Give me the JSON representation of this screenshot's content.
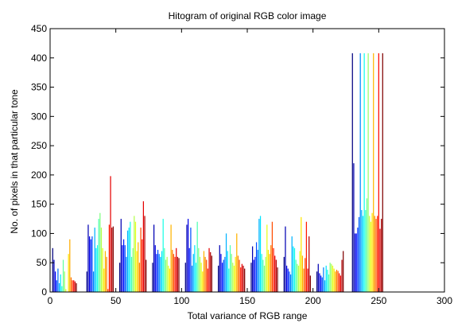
{
  "chart_data": {
    "type": "bar",
    "title": "Hitogram of original RGB color image",
    "xlabel": "Total variance of RGB range",
    "ylabel": "No. of pixels in that particular tone",
    "xlim": [
      0,
      300
    ],
    "ylim": [
      0,
      450
    ],
    "xticks": [
      0,
      50,
      100,
      150,
      200,
      250,
      300
    ],
    "yticks": [
      0,
      50,
      100,
      150,
      200,
      250,
      300,
      350,
      400,
      450
    ],
    "grid": false,
    "legend": "none",
    "colormap": "jet",
    "series": [
      {
        "x": [
          2,
          3,
          4,
          5,
          6,
          7,
          8,
          9,
          10,
          11,
          12,
          14,
          15,
          16,
          17,
          18,
          19,
          20
        ],
        "values": [
          75,
          55,
          35,
          20,
          40,
          15,
          30,
          10,
          55,
          35,
          5,
          65,
          90,
          25,
          20,
          20,
          18,
          15
        ]
      },
      {
        "x": [
          28,
          29,
          30,
          31,
          32,
          33,
          34,
          35,
          36,
          37,
          38,
          39,
          40,
          41,
          42,
          43,
          44,
          45,
          46,
          47,
          48
        ],
        "values": [
          35,
          115,
          95,
          90,
          95,
          35,
          110,
          75,
          80,
          125,
          135,
          110,
          75,
          40,
          70,
          60,
          5,
          115,
          198,
          110,
          112
        ]
      },
      {
        "x": [
          53,
          54,
          55,
          56,
          57,
          58,
          59,
          60,
          61,
          62,
          63,
          64,
          65,
          66,
          67,
          68,
          69,
          70,
          71,
          72,
          73
        ],
        "values": [
          50,
          125,
          80,
          90,
          80,
          60,
          105,
          110,
          120,
          60,
          75,
          130,
          120,
          70,
          85,
          50,
          110,
          90,
          155,
          130,
          55
        ]
      },
      {
        "x": [
          78,
          79,
          80,
          81,
          82,
          83,
          84,
          85,
          86,
          87,
          88,
          89,
          90,
          91,
          92,
          93,
          94,
          95,
          96,
          97,
          98
        ],
        "values": [
          50,
          115,
          80,
          65,
          72,
          65,
          60,
          70,
          125,
          75,
          55,
          60,
          45,
          40,
          115,
          72,
          65,
          60,
          75,
          60,
          58
        ]
      },
      {
        "x": [
          103,
          104,
          105,
          106,
          107,
          108,
          109,
          110,
          111,
          112,
          113,
          114,
          115,
          116,
          117,
          118,
          119,
          120,
          121,
          122,
          123
        ],
        "values": [
          50,
          115,
          125,
          75,
          110,
          45,
          65,
          80,
          50,
          120,
          75,
          60,
          50,
          35,
          70,
          60,
          55,
          40,
          75,
          68,
          62
        ]
      },
      {
        "x": [
          128,
          129,
          130,
          131,
          132,
          133,
          134,
          135,
          136,
          137,
          138,
          139,
          140,
          141,
          142,
          143,
          144,
          145,
          146,
          147,
          148
        ],
        "values": [
          45,
          80,
          65,
          50,
          55,
          60,
          100,
          70,
          40,
          80,
          65,
          50,
          45,
          60,
          100,
          62,
          55,
          42,
          48,
          45,
          40
        ]
      },
      {
        "x": [
          153,
          154,
          155,
          156,
          157,
          158,
          159,
          160,
          161,
          162,
          163,
          164,
          165,
          166,
          167,
          168,
          169,
          170,
          171,
          172,
          173
        ],
        "values": [
          50,
          78,
          55,
          60,
          85,
          72,
          125,
          130,
          65,
          55,
          45,
          60,
          115,
          72,
          65,
          80,
          120,
          75,
          62,
          55,
          42
        ]
      },
      {
        "x": [
          178,
          179,
          180,
          181,
          182,
          183,
          184,
          185,
          186,
          187,
          188,
          189,
          190,
          191,
          192,
          193,
          194,
          195,
          196,
          197,
          198
        ],
        "values": [
          60,
          112,
          45,
          40,
          35,
          30,
          95,
          78,
          75,
          55,
          48,
          45,
          70,
          128,
          62,
          40,
          58,
          120,
          40,
          95,
          28
        ]
      },
      {
        "x": [
          203,
          204,
          205,
          206,
          207,
          208,
          209,
          210,
          211,
          212,
          213,
          214,
          215,
          216,
          217,
          218,
          219,
          220,
          221,
          222,
          223
        ],
        "values": [
          35,
          48,
          32,
          28,
          25,
          42,
          20,
          45,
          38,
          30,
          50,
          48,
          45,
          40,
          35,
          38,
          36,
          32,
          28,
          55,
          70
        ]
      },
      {
        "x": [
          230,
          231,
          232,
          233,
          234,
          235,
          236,
          237,
          238,
          239,
          240,
          241,
          242,
          243,
          244,
          245,
          246,
          247,
          248,
          249,
          250,
          251,
          252,
          253
        ],
        "values": [
          408,
          220,
          100,
          100,
          110,
          128,
          408,
          140,
          130,
          408,
          140,
          160,
          408,
          130,
          120,
          135,
          408,
          130,
          125,
          130,
          408,
          108,
          125,
          408
        ]
      }
    ]
  }
}
